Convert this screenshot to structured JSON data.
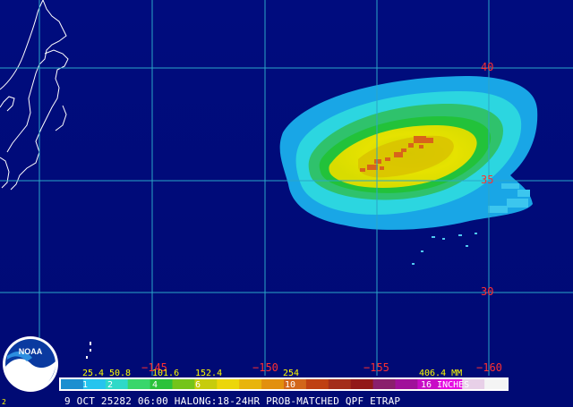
{
  "map": {
    "latitudes": [
      {
        "value": 40,
        "label": "40"
      },
      {
        "value": 35,
        "label": "35"
      },
      {
        "value": 30,
        "label": "30"
      }
    ],
    "longitudes": [
      {
        "value": -150,
        "label": "−150"
      },
      {
        "value": -155,
        "label": "−155"
      },
      {
        "value": -160,
        "label": "−160"
      }
    ],
    "partial_longitude_label": "−145",
    "colors": {
      "ocean": "#000c7e",
      "grid": "#2aa6c8",
      "coast": "#ffffff",
      "label": "#ff3030"
    }
  },
  "legend": {
    "mm_labels": [
      "25.4",
      "50.8",
      "101.6",
      "152.4",
      "254",
      "406.4 MM"
    ],
    "inch_labels": [
      "1",
      "2",
      "4",
      "6",
      "10",
      "16 INCHES"
    ],
    "colors": [
      "#1d8fd0",
      "#26c4ee",
      "#2fd9c8",
      "#39d66b",
      "#2bc23a",
      "#74c41a",
      "#c7cc0c",
      "#ecd60a",
      "#e8b40c",
      "#e2900e",
      "#d2661a",
      "#bf4012",
      "#a32d1a",
      "#921818",
      "#8a1f6c",
      "#a0109a",
      "#c80cc6",
      "#e60ce2",
      "#e8d0e8",
      "#f4f4f4"
    ]
  },
  "caption": "9 OCT 25282 06:00 HALONG:18-24HR PROB-MATCHED QPF ETRAP",
  "logo": {
    "text": "NOAA",
    "corner_mark": "2"
  }
}
